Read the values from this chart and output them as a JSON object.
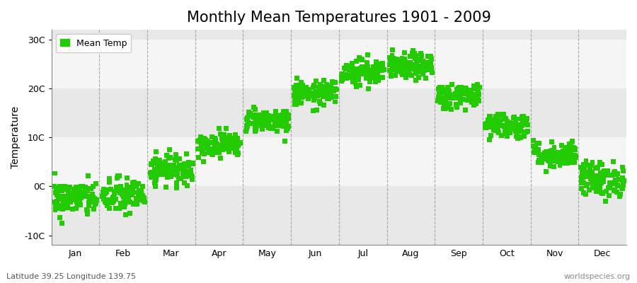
{
  "title": "Monthly Mean Temperatures 1901 - 2009",
  "ylabel": "Temperature",
  "footer_left": "Latitude 39.25 Longitude 139.75",
  "footer_right": "worldspecies.org",
  "legend_label": "Mean Temp",
  "yticks": [
    -10,
    0,
    10,
    20,
    30
  ],
  "ytick_labels": [
    "-10C",
    "0C",
    "10C",
    "20C",
    "30C"
  ],
  "ylim": [
    -12,
    32
  ],
  "months": [
    "Jan",
    "Feb",
    "Mar",
    "Apr",
    "May",
    "Jun",
    "Jul",
    "Aug",
    "Sep",
    "Oct",
    "Nov",
    "Dec"
  ],
  "mean_temps": [
    -2.5,
    -2.0,
    3.5,
    8.5,
    13.5,
    19.0,
    23.5,
    24.5,
    18.5,
    12.5,
    6.5,
    1.5
  ],
  "std_temps": [
    1.8,
    1.8,
    1.4,
    1.2,
    1.2,
    1.2,
    1.3,
    1.3,
    1.3,
    1.3,
    1.3,
    1.8
  ],
  "n_years": 109,
  "marker_color": "#22cc00",
  "marker_size": 5,
  "bg_color": "#ffffff",
  "plot_bg_color": "#ffffff",
  "band_light": "#f0f0f0",
  "band_dark": "#e0e0e0",
  "dashed_line_color": "#888888",
  "title_fontsize": 15,
  "label_fontsize": 10,
  "tick_fontsize": 9,
  "footer_fontsize": 8
}
